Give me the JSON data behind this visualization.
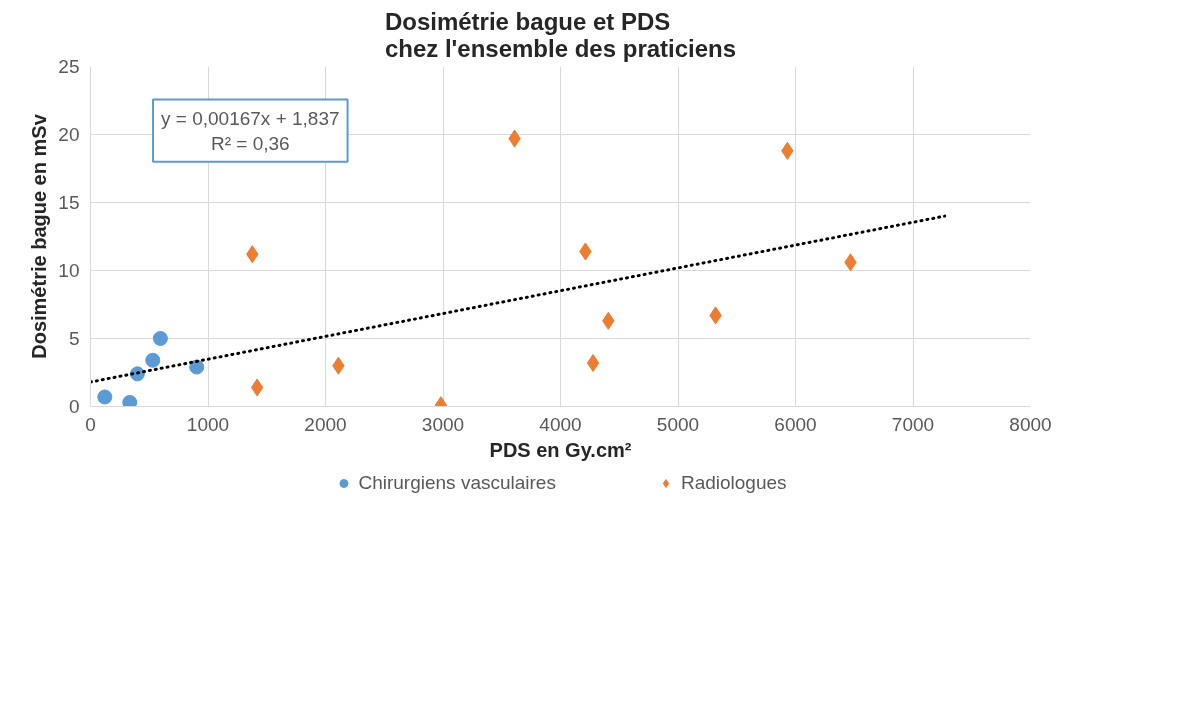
{
  "chart_data": {
    "type": "scatter",
    "title": "Dosimétrie bague et PDS\nchez l'ensemble des praticiens",
    "xlabel": "PDS en Gy.cm²",
    "ylabel": "Dosimétrie bague en mSv",
    "series": [
      {
        "name": "Chirurgiens vasculaires",
        "color": "#5b9bd5",
        "marker": "circle",
        "x": [
          122,
          334,
          399,
          530,
          595,
          904
        ],
        "values": [
          0.7,
          0.3,
          2.4,
          3.4,
          5.0,
          2.9
        ]
      },
      {
        "name": "Radiologues",
        "color": "#ed7d31",
        "marker": "diamond",
        "x": [
          1377,
          1418,
          2110,
          2982,
          3609,
          4212,
          4277,
          4407,
          5320,
          5931,
          6468
        ],
        "values": [
          11.2,
          1.4,
          3.0,
          0.1,
          19.7,
          11.4,
          3.2,
          6.3,
          6.7,
          18.8,
          10.6
        ]
      },
      {
        "type": "line",
        "color": "#000000",
        "line_style": "dotted",
        "x": [
          0,
          7270
        ],
        "values": [
          1.8,
          14.0
        ]
      }
    ],
    "annotations": [
      "y = 0,00167x + 1,837\nR² = 0,36"
    ],
    "xlim": [
      0,
      8000
    ],
    "xticks": [
      0,
      1000,
      2000,
      3000,
      4000,
      5000,
      6000,
      7000,
      8000
    ],
    "ylim": [
      0,
      25
    ],
    "yticks": [
      0,
      5,
      10,
      15,
      20,
      25
    ],
    "grid": true,
    "legend": "bottom"
  }
}
